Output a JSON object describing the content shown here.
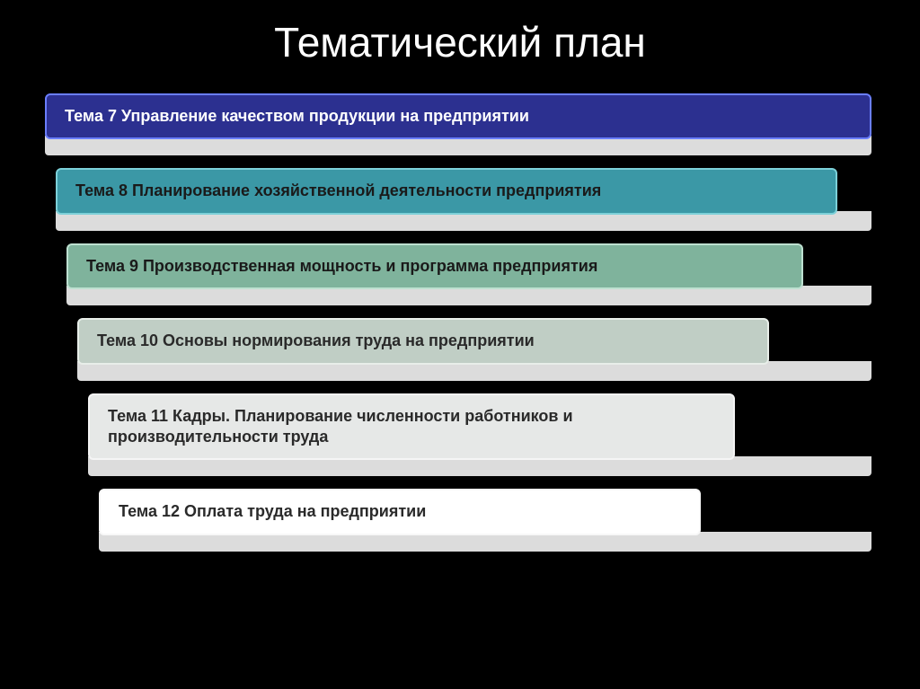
{
  "title": "Тематический план",
  "background_color": "#000000",
  "title_color": "#ffffff",
  "title_fontsize": 46,
  "shadow_color": "#dcdcdc",
  "items": [
    {
      "label": "Тема 7 Управление качеством продукции на предприятии",
      "bg_color": "#2c3090",
      "border_color": "#6a7eff",
      "text_color": "#ffffff"
    },
    {
      "label": "Тема 8 Планирование хозяйственной деятельности предприятия",
      "bg_color": "#3b98a6",
      "border_color": "#7cd0d8",
      "text_color": "#1a1a1a"
    },
    {
      "label": "Тема 9 Производственная мощность и программа предприятия",
      "bg_color": "#7fb39c",
      "border_color": "#bde0d0",
      "text_color": "#1a1a1a"
    },
    {
      "label": "Тема 10 Основы нормирования труда на предприятии",
      "bg_color": "#c0cec5",
      "border_color": "#e8eee9",
      "text_color": "#2a2a2a"
    },
    {
      "label": "Тема 11 Кадры. Планирование численности работников и производительности труда",
      "bg_color": "#e6e8e7",
      "border_color": "#f5f5f5",
      "text_color": "#2a2a2a"
    },
    {
      "label": "Тема 12 Оплата труда на предприятии",
      "bg_color": "#ffffff",
      "border_color": "#f8f8f8",
      "text_color": "#2a2a2a"
    }
  ]
}
